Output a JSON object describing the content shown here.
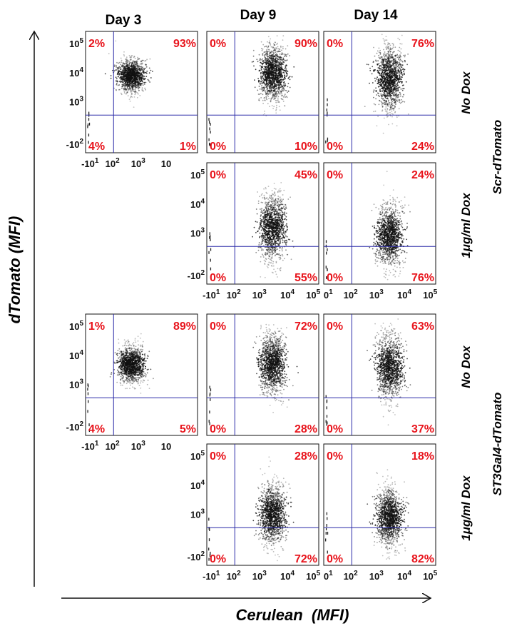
{
  "figure": {
    "columns": [
      "Day 3",
      "Day 9",
      "Day 14"
    ],
    "y_axis_label": "dTomato (MFI)",
    "x_axis_label": "Cerulean  (MFI)",
    "row_labels": [
      "No Dox",
      "1μg/ml Dox",
      "No Dox",
      "1μg/ml Dox"
    ],
    "group_labels": [
      "Scr-dTomato",
      "ST3Gal4-dTomato"
    ],
    "colors": {
      "quadrant_text": "#e8141c",
      "gate_line": "#2a2aa8",
      "dots": "#111111",
      "frame": "#111111"
    }
  },
  "chart_data": [
    {
      "type": "scatter",
      "row": 0,
      "col": 0,
      "condition": "Scr-dTomato / No Dox",
      "day": "Day 3",
      "quadrants": {
        "ul": "2%",
        "ur": "93%",
        "ll": "4%",
        "lr": "1%"
      },
      "population": {
        "cerulean_center": 220,
        "dtomato_center": 2500,
        "dtomato_low": 800,
        "dtomato_high": 20000
      },
      "y_ticks": [
        "10^5",
        "10^4",
        "10^3",
        "-10^2"
      ],
      "x_ticks": [
        "-10^1",
        "10^2",
        "10^3",
        "10"
      ]
    },
    {
      "type": "scatter",
      "row": 0,
      "col": 1,
      "condition": "Scr-dTomato / No Dox",
      "day": "Day 9",
      "quadrants": {
        "ul": "0%",
        "ur": "90%",
        "ll": "0%",
        "lr": "10%"
      },
      "population": {
        "cerulean_center": 1500,
        "dtomato_center": 3000,
        "dtomato_low": 200,
        "dtomato_high": 60000
      },
      "y_ticks": [],
      "x_ticks": []
    },
    {
      "type": "scatter",
      "row": 0,
      "col": 2,
      "condition": "Scr-dTomato / No Dox",
      "day": "Day 14",
      "quadrants": {
        "ul": "0%",
        "ur": "76%",
        "ll": "0%",
        "lr": "24%"
      },
      "population": {
        "cerulean_center": 1500,
        "dtomato_center": 2000,
        "dtomato_low": 100,
        "dtomato_high": 60000
      },
      "y_ticks": [],
      "x_ticks": []
    },
    {
      "type": "scatter",
      "row": 1,
      "col": 1,
      "condition": "Scr-dTomato / 1μg/ml Dox",
      "day": "Day 9",
      "quadrants": {
        "ul": "0%",
        "ur": "45%",
        "ll": "0%",
        "lr": "55%"
      },
      "population": {
        "cerulean_center": 1500,
        "dtomato_center": 400,
        "dtomato_low": 50,
        "dtomato_high": 30000
      },
      "y_ticks": [
        "10^5",
        "10^4",
        "10^3",
        "-10^2"
      ],
      "x_ticks": [
        "-10^1",
        "10^2",
        "10^3",
        "10^4",
        "10^5"
      ]
    },
    {
      "type": "scatter",
      "row": 1,
      "col": 2,
      "condition": "Scr-dTomato / 1μg/ml Dox",
      "day": "Day 14",
      "quadrants": {
        "ul": "0%",
        "ur": "24%",
        "ll": "0%",
        "lr": "76%"
      },
      "population": {
        "cerulean_center": 1500,
        "dtomato_center": 200,
        "dtomato_low": 50,
        "dtomato_high": 20000
      },
      "y_ticks": [],
      "x_ticks": [
        "0^1",
        "10^2",
        "10^3",
        "10^4",
        "10^5"
      ]
    },
    {
      "type": "scatter",
      "row": 2,
      "col": 0,
      "condition": "ST3Gal4-dTomato / No Dox",
      "day": "Day 3",
      "quadrants": {
        "ul": "1%",
        "ur": "89%",
        "ll": "4%",
        "lr": "5%"
      },
      "population": {
        "cerulean_center": 220,
        "dtomato_center": 1500,
        "dtomato_low": 500,
        "dtomato_high": 20000
      },
      "y_ticks": [
        "10^5",
        "10^4",
        "10^3",
        "-10^2"
      ],
      "x_ticks": [
        "-10^1",
        "10^2",
        "10^3",
        "10"
      ]
    },
    {
      "type": "scatter",
      "row": 2,
      "col": 1,
      "condition": "ST3Gal4-dTomato / No Dox",
      "day": "Day 9",
      "quadrants": {
        "ul": "0%",
        "ur": "72%",
        "ll": "0%",
        "lr": "28%"
      },
      "population": {
        "cerulean_center": 1500,
        "dtomato_center": 1500,
        "dtomato_low": 100,
        "dtomato_high": 50000
      },
      "y_ticks": [],
      "x_ticks": []
    },
    {
      "type": "scatter",
      "row": 2,
      "col": 2,
      "condition": "ST3Gal4-dTomato / No Dox",
      "day": "Day 14",
      "quadrants": {
        "ul": "0%",
        "ur": "63%",
        "ll": "0%",
        "lr": "37%"
      },
      "population": {
        "cerulean_center": 1500,
        "dtomato_center": 1200,
        "dtomato_low": 80,
        "dtomato_high": 50000
      },
      "y_ticks": [],
      "x_ticks": []
    },
    {
      "type": "scatter",
      "row": 3,
      "col": 1,
      "condition": "ST3Gal4-dTomato / 1μg/ml Dox",
      "day": "Day 9",
      "quadrants": {
        "ul": "0%",
        "ur": "28%",
        "ll": "0%",
        "lr": "72%"
      },
      "population": {
        "cerulean_center": 1500,
        "dtomato_center": 250,
        "dtomato_low": 50,
        "dtomato_high": 20000
      },
      "y_ticks": [
        "10^5",
        "10^4",
        "10^3",
        "-10^2"
      ],
      "x_ticks": [
        "-10^1",
        "10^2",
        "10^3",
        "10^4",
        "10^5"
      ]
    },
    {
      "type": "scatter",
      "row": 3,
      "col": 2,
      "condition": "ST3Gal4-dTomato / 1μg/ml Dox",
      "day": "Day 14",
      "quadrants": {
        "ul": "0%",
        "ur": "18%",
        "ll": "0%",
        "lr": "82%"
      },
      "population": {
        "cerulean_center": 1500,
        "dtomato_center": 200,
        "dtomato_low": 50,
        "dtomato_high": 15000
      },
      "y_ticks": [],
      "x_ticks": [
        "0^1",
        "10^2",
        "10^3",
        "10^4",
        "10^5"
      ]
    }
  ]
}
